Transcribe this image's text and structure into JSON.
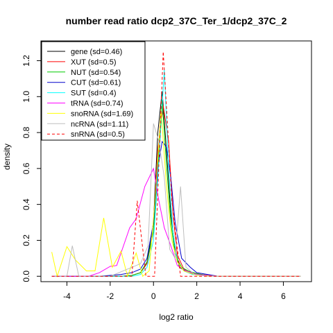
{
  "chart_data": {
    "type": "line",
    "title": "number read ratio dcp2_37C_Ter_1/dcp2_37C_2",
    "xlabel": "log2 ratio",
    "ylabel": "density",
    "xlim": [
      -5.2,
      7.3
    ],
    "ylim": [
      -0.03,
      1.31
    ],
    "x_ticks": [
      -4,
      -2,
      0,
      2,
      4,
      6
    ],
    "x_tick_labels": [
      "-4",
      "-2",
      "0",
      "2",
      "4",
      "6"
    ],
    "y_ticks": [
      0.0,
      0.2,
      0.4,
      0.6,
      0.8,
      1.0,
      1.2
    ],
    "y_tick_labels": [
      "0.0",
      "0.2",
      "0.4",
      "0.6",
      "0.8",
      "1.0",
      "1.2"
    ],
    "grid": false,
    "legend_position": "top-left",
    "series": [
      {
        "name": "gene (sd=0.46)",
        "color": "#000000",
        "dash": "solid",
        "x": [
          -4.7,
          -3.5,
          -2.5,
          -1.5,
          -1.0,
          -0.6,
          -0.3,
          0.0,
          0.2,
          0.4,
          0.6,
          0.8,
          1.0,
          1.2,
          1.6,
          2.0,
          2.5,
          3.0,
          4.0,
          5.0,
          6.8
        ],
        "y": [
          0.0,
          0.0,
          0.0,
          0.0,
          0.005,
          0.02,
          0.08,
          0.3,
          0.8,
          1.03,
          0.7,
          0.35,
          0.15,
          0.05,
          0.02,
          0.01,
          0.005,
          0.0,
          0.0,
          0.0,
          0.0
        ]
      },
      {
        "name": "XUT (sd=0.5)",
        "color": "#ff0000",
        "dash": "solid",
        "x": [
          -4.7,
          -3.5,
          -2.5,
          -1.5,
          -1.0,
          -0.6,
          -0.3,
          0.0,
          0.2,
          0.45,
          0.7,
          0.9,
          1.1,
          1.4,
          1.8,
          2.2,
          2.6,
          3.0,
          4.0,
          5.0,
          6.8
        ],
        "y": [
          0.0,
          0.0,
          0.0,
          0.0,
          0.005,
          0.02,
          0.07,
          0.25,
          0.7,
          0.95,
          0.75,
          0.35,
          0.12,
          0.04,
          0.02,
          0.01,
          0.005,
          0.0,
          0.0,
          0.0,
          0.0
        ]
      },
      {
        "name": "NUT (sd=0.54)",
        "color": "#00cc00",
        "dash": "solid",
        "x": [
          -4.7,
          -3.5,
          -2.5,
          -1.5,
          -1.0,
          -0.6,
          -0.3,
          0.0,
          0.2,
          0.4,
          0.6,
          0.8,
          1.0,
          1.3,
          1.6,
          2.0,
          2.5,
          3.0,
          4.0,
          5.0,
          6.8
        ],
        "y": [
          0.0,
          0.0,
          0.0,
          0.0,
          0.005,
          0.02,
          0.08,
          0.25,
          0.6,
          0.98,
          0.62,
          0.3,
          0.12,
          0.05,
          0.03,
          0.015,
          0.005,
          0.0,
          0.0,
          0.0,
          0.0
        ]
      },
      {
        "name": "CUT (sd=0.61)",
        "color": "#0000cc",
        "dash": "solid",
        "x": [
          -4.7,
          -3.5,
          -2.5,
          -1.5,
          -1.0,
          -0.6,
          -0.3,
          0.0,
          0.2,
          0.4,
          0.6,
          0.8,
          1.0,
          1.3,
          1.7,
          2.0,
          2.5,
          3.0,
          4.0,
          5.0,
          6.8
        ],
        "y": [
          0.0,
          0.0,
          0.0,
          0.01,
          0.02,
          0.04,
          0.1,
          0.3,
          0.6,
          0.75,
          0.72,
          0.55,
          0.3,
          0.1,
          0.05,
          0.02,
          0.01,
          0.0,
          0.0,
          0.0,
          0.0
        ]
      },
      {
        "name": "SUT (sd=0.4)",
        "color": "#00ffff",
        "dash": "solid",
        "x": [
          -4.7,
          -3.5,
          -2.5,
          -1.5,
          -1.0,
          -0.6,
          -0.3,
          0.0,
          0.2,
          0.5,
          0.7,
          0.9,
          1.1,
          1.4,
          1.8,
          2.2,
          3.0,
          4.0,
          5.0,
          6.8
        ],
        "y": [
          0.0,
          0.0,
          0.0,
          0.0,
          0.0,
          0.01,
          0.05,
          0.2,
          0.55,
          1.15,
          0.6,
          0.25,
          0.08,
          0.03,
          0.01,
          0.005,
          0.0,
          0.0,
          0.0,
          0.0
        ]
      },
      {
        "name": "tRNA (sd=0.74)",
        "color": "#ff00ff",
        "dash": "solid",
        "x": [
          -4.7,
          -3.5,
          -3.0,
          -2.5,
          -2.0,
          -1.7,
          -1.1,
          -0.8,
          -0.4,
          0.0,
          0.2,
          0.5,
          0.8,
          1.1,
          1.5,
          2.0,
          2.5,
          3.0,
          4.0,
          5.0,
          6.8
        ],
        "y": [
          0.0,
          0.0,
          0.0,
          0.02,
          0.055,
          0.06,
          0.27,
          0.32,
          0.5,
          0.6,
          0.45,
          0.27,
          0.17,
          0.06,
          0.03,
          0.01,
          0.005,
          0.0,
          0.0,
          0.0,
          0.0
        ]
      },
      {
        "name": "snoRNA (sd=1.69)",
        "color": "#ffff00",
        "dash": "solid",
        "x": [
          -4.7,
          -4.45,
          -4.0,
          -3.6,
          -3.1,
          -2.7,
          -2.3,
          -1.9,
          -1.5,
          -1.2,
          -0.8,
          -0.5,
          -0.2,
          0.1,
          0.35,
          0.6,
          0.85,
          1.1,
          1.4,
          2.0,
          3.0,
          4.0,
          5.0,
          6.8
        ],
        "y": [
          0.135,
          0.0,
          0.165,
          0.09,
          0.03,
          0.03,
          0.325,
          0.05,
          0.14,
          0.0,
          0.13,
          0.0,
          0.03,
          0.47,
          0.93,
          0.5,
          0.2,
          0.08,
          0.03,
          0.005,
          0.0,
          0.0,
          0.0,
          0.0
        ]
      },
      {
        "name": "ncRNA (sd=1.11)",
        "color": "#bebebe",
        "dash": "solid",
        "x": [
          -4.7,
          -4.0,
          -3.75,
          -3.45,
          -3.0,
          -2.0,
          -1.0,
          -0.6,
          -0.25,
          0.0,
          0.25,
          0.5,
          0.75,
          1.0,
          1.25,
          1.5,
          1.9,
          2.5,
          3.0,
          4.0,
          5.0,
          6.8
        ],
        "y": [
          0.0,
          0.0,
          0.17,
          0.0,
          0.0,
          0.0,
          0.05,
          0.07,
          0.17,
          0.85,
          0.75,
          0.55,
          0.15,
          0.1,
          0.5,
          0.05,
          0.01,
          0.0,
          0.0,
          0.0,
          0.0,
          0.0
        ]
      },
      {
        "name": "snRNA (sd=0.5)",
        "color": "#ff0000",
        "dash": "dashed",
        "x": [
          -4.7,
          -1.0,
          -0.75,
          -0.35,
          0.05,
          0.45,
          0.85,
          1.25,
          1.7,
          2.2,
          3.0,
          4.0,
          5.0,
          6.8
        ],
        "y": [
          0.0,
          0.0,
          0.42,
          0.0,
          0.0,
          1.25,
          0.42,
          0.0,
          0.0,
          0.0,
          0.0,
          0.0,
          0.0,
          0.0
        ]
      }
    ]
  }
}
